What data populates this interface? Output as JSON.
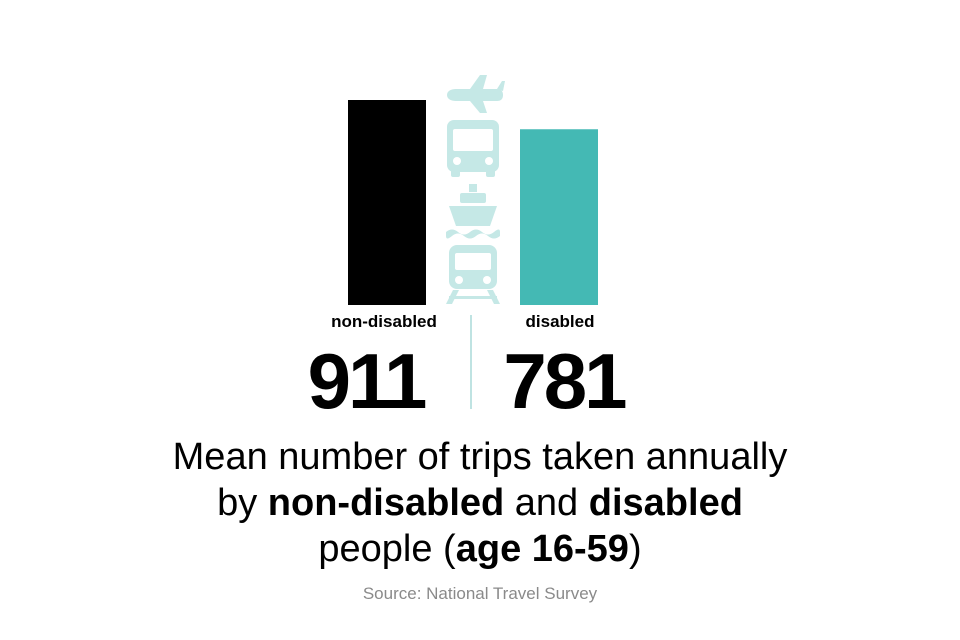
{
  "chart_data": {
    "type": "bar",
    "categories": [
      "non-disabled",
      "disabled"
    ],
    "values": [
      911,
      781
    ],
    "value_labels": [
      "911",
      "781"
    ],
    "colors": [
      "#000000",
      "#44b9b4"
    ],
    "icon_color": "#c5e8e6",
    "icons": [
      "airplane-icon",
      "bus-icon",
      "ship-icon",
      "train-icon"
    ]
  },
  "caption": {
    "line1": "Mean number of trips taken annually",
    "line2_a": "by ",
    "line2_b": "non-disabled",
    "line2_c": " and ",
    "line2_d": "disabled",
    "line3_a": "people (",
    "line3_b": "age 16-59",
    "line3_c": ")"
  },
  "source": "Source: National Travel Survey"
}
